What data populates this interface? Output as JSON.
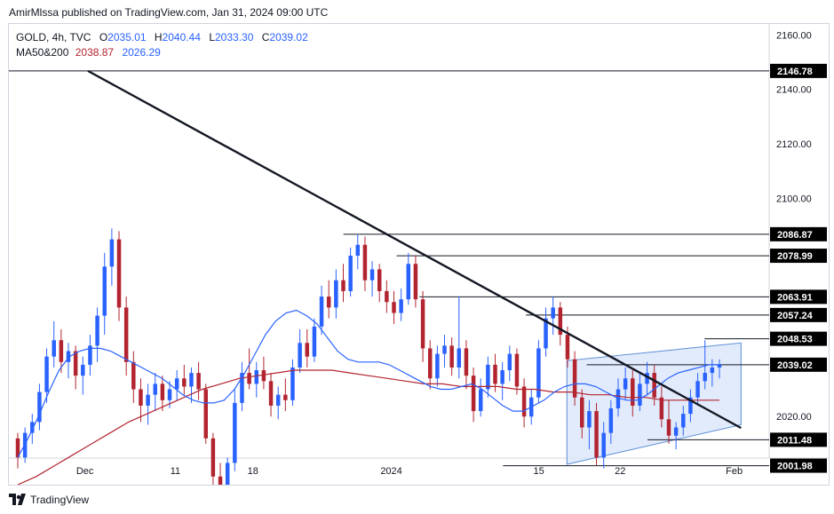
{
  "header": {
    "attribution": "AmirMlssa published on TradingView.com, Jan 31, 2024 09:00 UTC"
  },
  "legend": {
    "symbol": "GOLD, 4h, TVC",
    "open_label": "O",
    "open": "2035.01",
    "high_label": "H",
    "high": "2040.44",
    "low_label": "L",
    "low": "2033.30",
    "close_label": "C",
    "close": "2039.02",
    "ma_label": "MA50&200",
    "ma50": "2038.87",
    "ma200": "2026.29"
  },
  "footer": {
    "brand": "TradingView",
    "logo_icon": "tradingview-logo-icon"
  },
  "colors": {
    "up": "#2962ff",
    "down": "#b2242f",
    "ma_fast": "#2962ff",
    "ma_slow": "#b2242f",
    "channel_fill": "#dbe6fb",
    "channel_line": "#5b8ed6",
    "label_bg": "#000000",
    "label_text": "#ffffff"
  },
  "chart_data": {
    "type": "candlestick",
    "symbol": "GOLD",
    "timeframe": "4h",
    "x_tick_labels": [
      "Dec",
      "11",
      "18",
      "2024",
      "15",
      "22",
      "Feb"
    ],
    "y_ticks": [
      "2160.00",
      "2140.00",
      "2120.00",
      "2100.00",
      "2020.00"
    ],
    "y_range": [
      1995,
      2164
    ],
    "level_labels": [
      "2146.78",
      "2086.87",
      "2078.99",
      "2063.91",
      "2057.24",
      "2048.53",
      "2039.02",
      "2011.48",
      "2001.98"
    ],
    "levels": [
      2146.78,
      2086.87,
      2078.99,
      2063.91,
      2057.24,
      2048.53,
      2039.02,
      2011.48,
      2001.98
    ],
    "trendline": {
      "from": [
        0.104,
        2146.78
      ],
      "to": [
        0.963,
        2015.8
      ]
    },
    "channel": {
      "lower": [
        [
          0.734,
          2002.5
        ],
        [
          0.963,
          2017.0
        ]
      ],
      "upper": [
        [
          0.734,
          2040.5
        ],
        [
          0.963,
          2047.0
        ]
      ]
    },
    "candles": [
      [
        2012,
        2014,
        2001,
        2005
      ],
      [
        2005,
        2016,
        2003,
        2014
      ],
      [
        2014,
        2021,
        2010,
        2018
      ],
      [
        2018,
        2032,
        2015,
        2029
      ],
      [
        2029,
        2045,
        2025,
        2042
      ],
      [
        2042,
        2055,
        2038,
        2048
      ],
      [
        2048,
        2052,
        2036,
        2040
      ],
      [
        2040,
        2047,
        2034,
        2044
      ],
      [
        2044,
        2046,
        2030,
        2035
      ],
      [
        2035,
        2042,
        2028,
        2039
      ],
      [
        2039,
        2050,
        2035,
        2046
      ],
      [
        2046,
        2060,
        2040,
        2057
      ],
      [
        2057,
        2080,
        2050,
        2075
      ],
      [
        2075,
        2089,
        2068,
        2085
      ],
      [
        2085,
        2088,
        2055,
        2060
      ],
      [
        2060,
        2064,
        2035,
        2040
      ],
      [
        2040,
        2044,
        2025,
        2030
      ],
      [
        2030,
        2034,
        2018,
        2024
      ],
      [
        2024,
        2032,
        2017,
        2028
      ],
      [
        2028,
        2036,
        2022,
        2032
      ],
      [
        2032,
        2035,
        2022,
        2026
      ],
      [
        2026,
        2033,
        2023,
        2030
      ],
      [
        2030,
        2037,
        2026,
        2034
      ],
      [
        2034,
        2039,
        2028,
        2031
      ],
      [
        2031,
        2038,
        2025,
        2036
      ],
      [
        2036,
        2040,
        2026,
        2030
      ],
      [
        2030,
        2032,
        2010,
        2012
      ],
      [
        2012,
        2014,
        1995,
        1998
      ],
      [
        1998,
        2003,
        1993,
        1995
      ],
      [
        1995,
        2005,
        1993,
        2003
      ],
      [
        2003,
        2030,
        2000,
        2025
      ],
      [
        2025,
        2040,
        2022,
        2036
      ],
      [
        2036,
        2045,
        2030,
        2032
      ],
      [
        2032,
        2040,
        2027,
        2037
      ],
      [
        2037,
        2042,
        2030,
        2033
      ],
      [
        2033,
        2036,
        2020,
        2024
      ],
      [
        2024,
        2031,
        2019,
        2028
      ],
      [
        2028,
        2034,
        2022,
        2026
      ],
      [
        2026,
        2041,
        2024,
        2038
      ],
      [
        2038,
        2052,
        2036,
        2047
      ],
      [
        2047,
        2052,
        2038,
        2042
      ],
      [
        2042,
        2056,
        2040,
        2053
      ],
      [
        2053,
        2068,
        2050,
        2064
      ],
      [
        2064,
        2070,
        2056,
        2060
      ],
      [
        2060,
        2074,
        2056,
        2070
      ],
      [
        2070,
        2076,
        2062,
        2066
      ],
      [
        2066,
        2082,
        2064,
        2079
      ],
      [
        2079,
        2087,
        2074,
        2083
      ],
      [
        2083,
        2086,
        2066,
        2070
      ],
      [
        2070,
        2077,
        2064,
        2074
      ],
      [
        2074,
        2076,
        2062,
        2066
      ],
      [
        2066,
        2070,
        2058,
        2062
      ],
      [
        2062,
        2066,
        2054,
        2058
      ],
      [
        2058,
        2067,
        2055,
        2063
      ],
      [
        2063,
        2080,
        2061,
        2076
      ],
      [
        2076,
        2079,
        2060,
        2063
      ],
      [
        2063,
        2066,
        2040,
        2045
      ],
      [
        2045,
        2048,
        2030,
        2034
      ],
      [
        2034,
        2046,
        2031,
        2043
      ],
      [
        2043,
        2050,
        2038,
        2046
      ],
      [
        2046,
        2049,
        2035,
        2038
      ],
      [
        2038,
        2064,
        2034,
        2045
      ],
      [
        2045,
        2048,
        2030,
        2035
      ],
      [
        2035,
        2038,
        2018,
        2022
      ],
      [
        2022,
        2034,
        2020,
        2030
      ],
      [
        2030,
        2042,
        2027,
        2039
      ],
      [
        2039,
        2043,
        2029,
        2032
      ],
      [
        2032,
        2040,
        2026,
        2037
      ],
      [
        2037,
        2046,
        2033,
        2043
      ],
      [
        2043,
        2045,
        2028,
        2031
      ],
      [
        2031,
        2034,
        2016,
        2020
      ],
      [
        2020,
        2030,
        2017,
        2027
      ],
      [
        2027,
        2048,
        2025,
        2045
      ],
      [
        2045,
        2060,
        2042,
        2056
      ],
      [
        2056,
        2064,
        2050,
        2060
      ],
      [
        2060,
        2062,
        2046,
        2050
      ],
      [
        2050,
        2053,
        2038,
        2041
      ],
      [
        2041,
        2044,
        2024,
        2027
      ],
      [
        2027,
        2030,
        2012,
        2016
      ],
      [
        2016,
        2026,
        2008,
        2022
      ],
      [
        2022,
        2025,
        2002,
        2005
      ],
      [
        2005,
        2018,
        2001,
        2014
      ],
      [
        2014,
        2026,
        2010,
        2023
      ],
      [
        2023,
        2034,
        2020,
        2030
      ],
      [
        2030,
        2038,
        2026,
        2034
      ],
      [
        2034,
        2037,
        2020,
        2024
      ],
      [
        2024,
        2036,
        2022,
        2032
      ],
      [
        2032,
        2040,
        2028,
        2036
      ],
      [
        2036,
        2039,
        2024,
        2027
      ],
      [
        2027,
        2031,
        2016,
        2019
      ],
      [
        2019,
        2026,
        2010,
        2013
      ],
      [
        2013,
        2018,
        2008,
        2016
      ],
      [
        2016,
        2024,
        2013,
        2021
      ],
      [
        2021,
        2030,
        2018,
        2027
      ],
      [
        2027,
        2036,
        2024,
        2033
      ],
      [
        2033,
        2048,
        2030,
        2036
      ],
      [
        2036,
        2041,
        2031,
        2038
      ],
      [
        2038,
        2041,
        2034,
        2039
      ]
    ],
    "ma50": [
      2005,
      2012,
      2020,
      2029,
      2037,
      2042,
      2044,
      2045,
      2045,
      2044,
      2042,
      2040,
      2038,
      2036,
      2034,
      2031,
      2028,
      2026,
      2025,
      2025,
      2026,
      2030,
      2036,
      2043,
      2050,
      2055,
      2058,
      2059,
      2057,
      2054,
      2049,
      2044,
      2041,
      2040,
      2040,
      2040,
      2039,
      2037,
      2035,
      2033,
      2031,
      2030,
      2030,
      2031,
      2032,
      2030,
      2027,
      2024,
      2022,
      2022,
      2024,
      2026,
      2029,
      2031,
      2032,
      2032,
      2031,
      2029,
      2027,
      2026,
      2026,
      2028,
      2031,
      2034,
      2036,
      2037,
      2038,
      2039,
      2039
    ],
    "ma200": [
      1995,
      1998,
      2002,
      2006,
      2010,
      2014,
      2018,
      2021,
      2024,
      2027,
      2030,
      2032,
      2034,
      2035,
      2036,
      2037,
      2037,
      2037,
      2036,
      2035,
      2034,
      2033,
      2032,
      2032,
      2031,
      2031,
      2031,
      2030,
      2030,
      2029,
      2029,
      2028,
      2028,
      2027,
      2027,
      2026,
      2026,
      2026,
      2026
    ]
  }
}
